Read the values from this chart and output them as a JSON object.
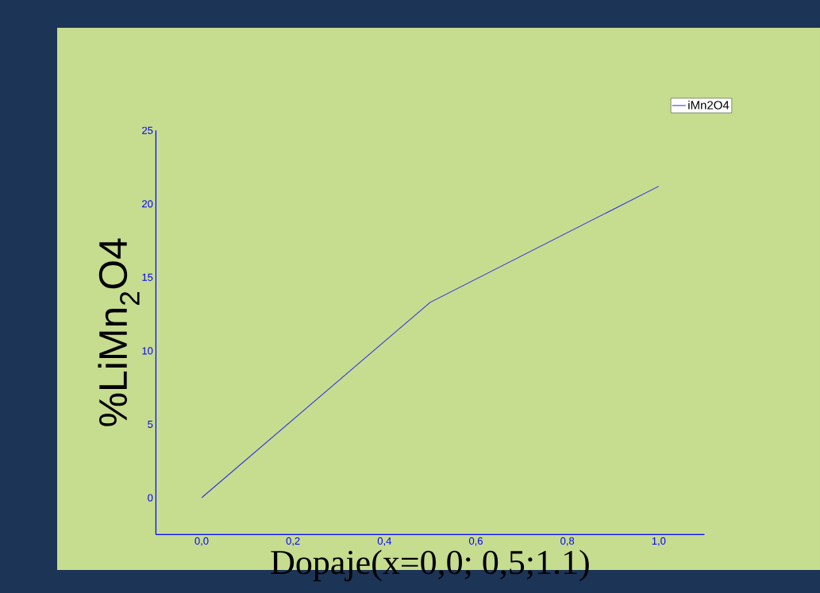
{
  "chart_data": {
    "type": "line",
    "xlabel": "Dopaje(x=0,0; 0,5;1.1)",
    "ylabel": "%LiMn$_{2}$O4",
    "x": [
      0,
      0.5,
      1.0
    ],
    "series": [
      {
        "name": "iMn2O4",
        "color": "#2a2ae6",
        "values": [
          0,
          13.3,
          21.2
        ]
      }
    ],
    "xlim": [
      -0.1,
      1.1
    ],
    "xticks": [
      {
        "value": 0,
        "label": "0,0"
      },
      {
        "value": 0.2,
        "label": "0,2"
      },
      {
        "value": 0.4,
        "label": "0,4"
      },
      {
        "value": 0.6,
        "label": "0,6"
      },
      {
        "value": 0.8,
        "label": "0,8"
      },
      {
        "value": 1.0,
        "label": "1,0"
      }
    ],
    "ylim": [
      -2.5,
      25
    ],
    "yticks": [
      0,
      5,
      10,
      15,
      20,
      25
    ],
    "legend": "top right",
    "grid": false,
    "marker": "none",
    "line_style": "solid"
  }
}
